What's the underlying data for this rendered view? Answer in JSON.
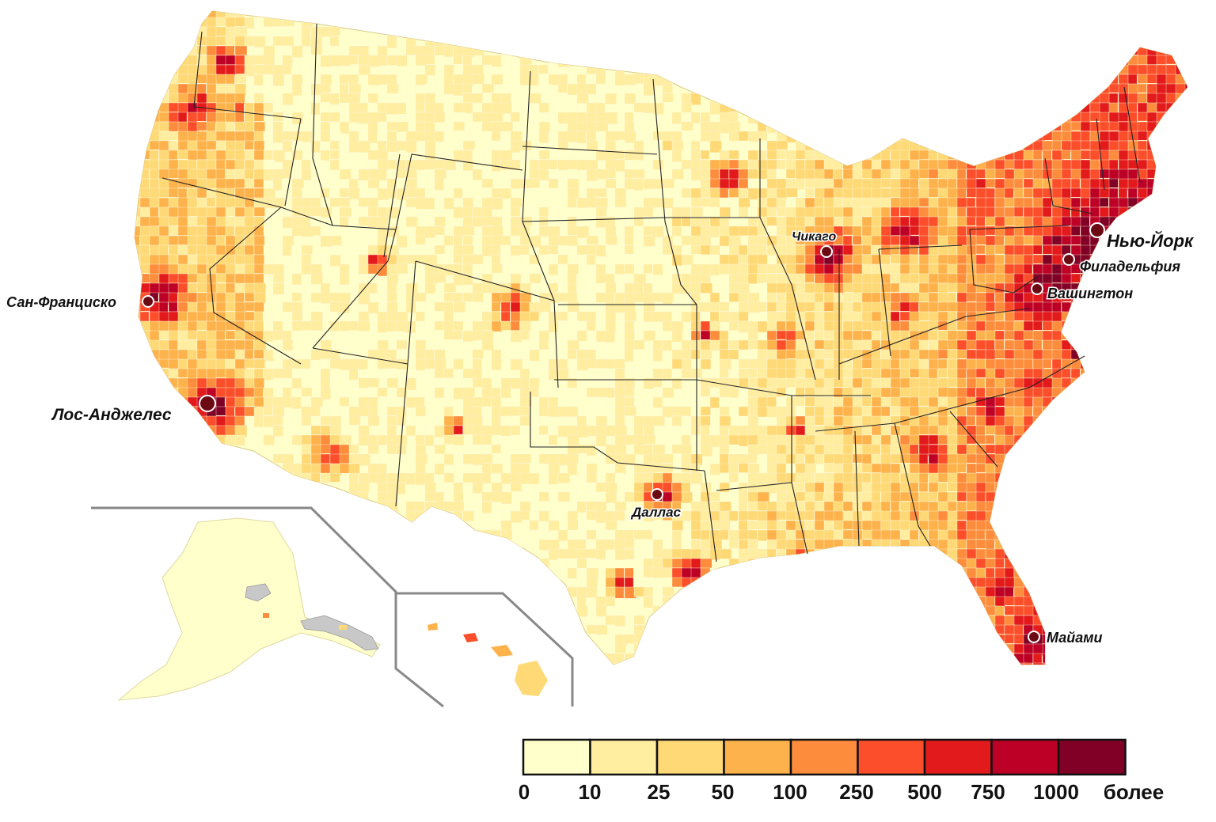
{
  "map": {
    "cities": [
      {
        "id": "new-york",
        "name": "Нью-Йорк",
        "size": "large"
      },
      {
        "id": "philadelphia",
        "name": "Филадельфия",
        "size": "medium"
      },
      {
        "id": "washington",
        "name": "Вашингтон",
        "size": "medium"
      },
      {
        "id": "chicago",
        "name": "Чикаго",
        "size": "small"
      },
      {
        "id": "san-francisco",
        "name": "Сан-Франциско",
        "size": "medium"
      },
      {
        "id": "los-angeles",
        "name": "Лос-Анджелес",
        "size": "large"
      },
      {
        "id": "dallas",
        "name": "Даллас",
        "size": "small"
      },
      {
        "id": "miami",
        "name": "Майами",
        "size": "medium"
      }
    ],
    "colors": {
      "marker_fill": "#6b0a12",
      "border": "#222222",
      "inset_line": "#888888",
      "no_data": "#c8c8c8"
    }
  },
  "legend": {
    "bins": [
      {
        "color": "#ffffcc"
      },
      {
        "color": "#ffeda0"
      },
      {
        "color": "#fed976"
      },
      {
        "color": "#feb24c"
      },
      {
        "color": "#fd8d3c"
      },
      {
        "color": "#fc4e2a"
      },
      {
        "color": "#e31a1c"
      },
      {
        "color": "#bd0026"
      },
      {
        "color": "#800026"
      }
    ],
    "labels": [
      "0",
      "10",
      "25",
      "50",
      "100",
      "250",
      "500",
      "750",
      "1000",
      "более"
    ]
  }
}
